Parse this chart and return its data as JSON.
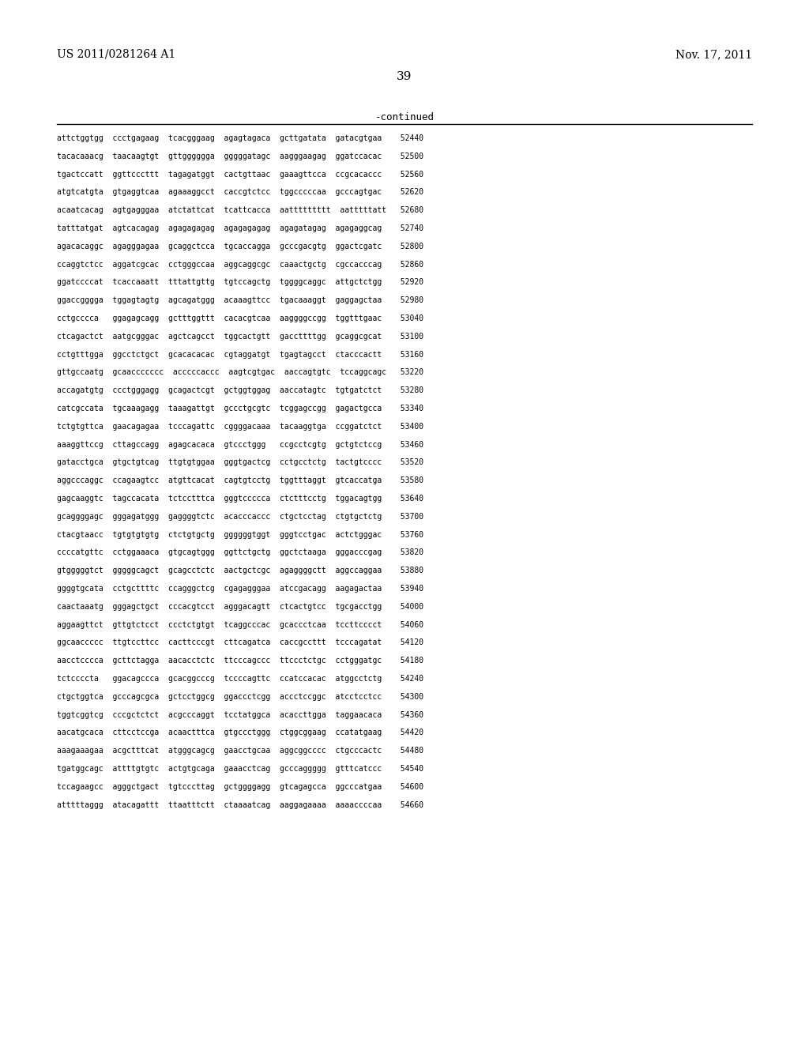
{
  "left_header": "US 2011/0281264 A1",
  "right_header": "Nov. 17, 2011",
  "page_number": "39",
  "continued_label": "-continued",
  "background_color": "#ffffff",
  "text_color": "#000000",
  "sequence_lines": [
    "attctggtgg  ccctgagaag  tcacgggaag  agagtagaca  gcttgatata  gatacgtgaa    52440",
    "tacacaaacg  taacaagtgt  gttgggggga  gggggatagc  aagggaagag  ggatccacac    52500",
    "tgactccatt  ggttcccttt  tagagatggt  cactgttaac  gaaagttcca  ccgcacaccc    52560",
    "atgtcatgta  gtgaggtcaa  agaaaggcct  caccgtctcc  tggcccccaa  gcccagtgac    52620",
    "acaatcacag  agtgagggaa  atctattcat  tcattcacca  aattttttttt  aatttttatt   52680",
    "tatttatgat  agtcacagag  agagagagag  agagagagag  agagatagag  agagaggcag    52740",
    "agacacaggc  agagggagaa  gcaggctcca  tgcaccagga  gcccgacgtg  ggactcgatc    52800",
    "ccaggtctcc  aggatcgcac  cctgggccaa  aggcaggcgc  caaactgctg  cgccacccag    52860",
    "ggatccccat  tcaccaaatt  tttattgttg  tgtccagctg  tggggcaggc  attgctctgg    52920",
    "ggaccgggga  tggagtagtg  agcagatggg  acaaagttcc  tgacaaaggt  gaggagctaa    52980",
    "cctgcccca   ggagagcagg  gctttggttt  cacacgtcaa  aaggggccgg  tggtttgaac    53040",
    "ctcagactct  aatgcgggac  agctcagcct  tggcactgtt  gaccttttgg  gcaggcgcat    53100",
    "cctgtttgga  ggcctctgct  gcacacacac  cgtaggatgt  tgagtagcct  ctacccactt    53160",
    "gttgccaatg  gcaaccccccc  acccccaccc  aagtcgtgac  aaccagtgtc  tccaggcagc   53220",
    "accagatgtg  ccctgggagg  gcagactcgt  gctggtggag  aaccatagtc  tgtgatctct    53280",
    "catcgccata  tgcaaagagg  taaagattgt  gccctgcgtc  tcggagccgg  gagactgcca    53340",
    "tctgtgttca  gaacagagaa  tcccagattc  cggggacaaa  tacaaggtga  ccggatctct    53400",
    "aaaggttccg  cttagccagg  agagcacaca  gtccctggg   ccgcctcgtg  gctgtctccg    53460",
    "gatacctgca  gtgctgtcag  ttgtgtggaa  gggtgactcg  cctgcctctg  tactgtcccc    53520",
    "aggcccaggc  ccagaagtcc  atgttcacat  cagtgtcctg  tggtttaggt  gtcaccatga    53580",
    "gagcaaggtc  tagccacata  tctcctttca  gggtccccca  ctctttcctg  tggacagtgg    53640",
    "gcaggggagc  gggagatggg  gaggggtctc  acacccaccc  ctgctcctag  ctgtgctctg    53700",
    "ctacgtaacc  tgtgtgtgtg  ctctgtgctg  ggggggtggt  gggtcctgac  actctgggac    53760",
    "ccccatgttc  cctggaaaca  gtgcagtggg  ggttctgctg  ggctctaaga  gggacccgag    53820",
    "gtgggggtct  gggggcagct  gcagcctctc  aactgctcgc  agaggggctt  aggccaggaa    53880",
    "ggggtgcata  cctgcttttc  ccagggctcg  cgagagggaa  atccgacagg  aagagactaa    53940",
    "caactaaatg  gggagctgct  cccacgtcct  agggacagtt  ctcactgtcc  tgcgacctgg    54000",
    "aggaagttct  gttgtctcct  ccctctgtgt  tcaggcccac  gcaccctcaa  tccttcccct    54060",
    "ggcaaccccc  ttgtccttcc  cacttcccgt  cttcagatca  caccgccttt  tcccagatat    54120",
    "aacctcccca  gcttctagga  aacacctctc  ttcccagccc  ttccctctgc  cctgggatgc    54180",
    "tctccccta   ggacagccca  gcacggcccg  tccccagttc  ccatccacac  atggcctctg    54240",
    "ctgctggtca  gcccagcgca  gctcctggcg  ggaccctcgg  accctccggc  atcctcctcc    54300",
    "tggtcggtcg  cccgctctct  acgcccaggt  tcctatggca  acaccttgga  taggaacaca    54360",
    "aacatgcaca  cttcctccga  acaactttca  gtgccctggg  ctggcggaag  ccatatgaag    54420",
    "aaagaaagaa  acgctttcat  atgggcagcg  gaacctgcaa  aggcggcccc  ctgcccactc    54480",
    "tgatggcagc  attttgtgtc  actgtgcaga  gaaacctcag  gcccaggggg  gtttcatccc    54540",
    "tccagaagcc  agggctgact  tgtcccttag  gctggggagg  gtcagagcca  ggcccatgaa    54600",
    "atttttaggg  atacagattt  ttaatttctt  ctaaaatcag  aaggagaaaa  aaaaccccaa    54660"
  ]
}
